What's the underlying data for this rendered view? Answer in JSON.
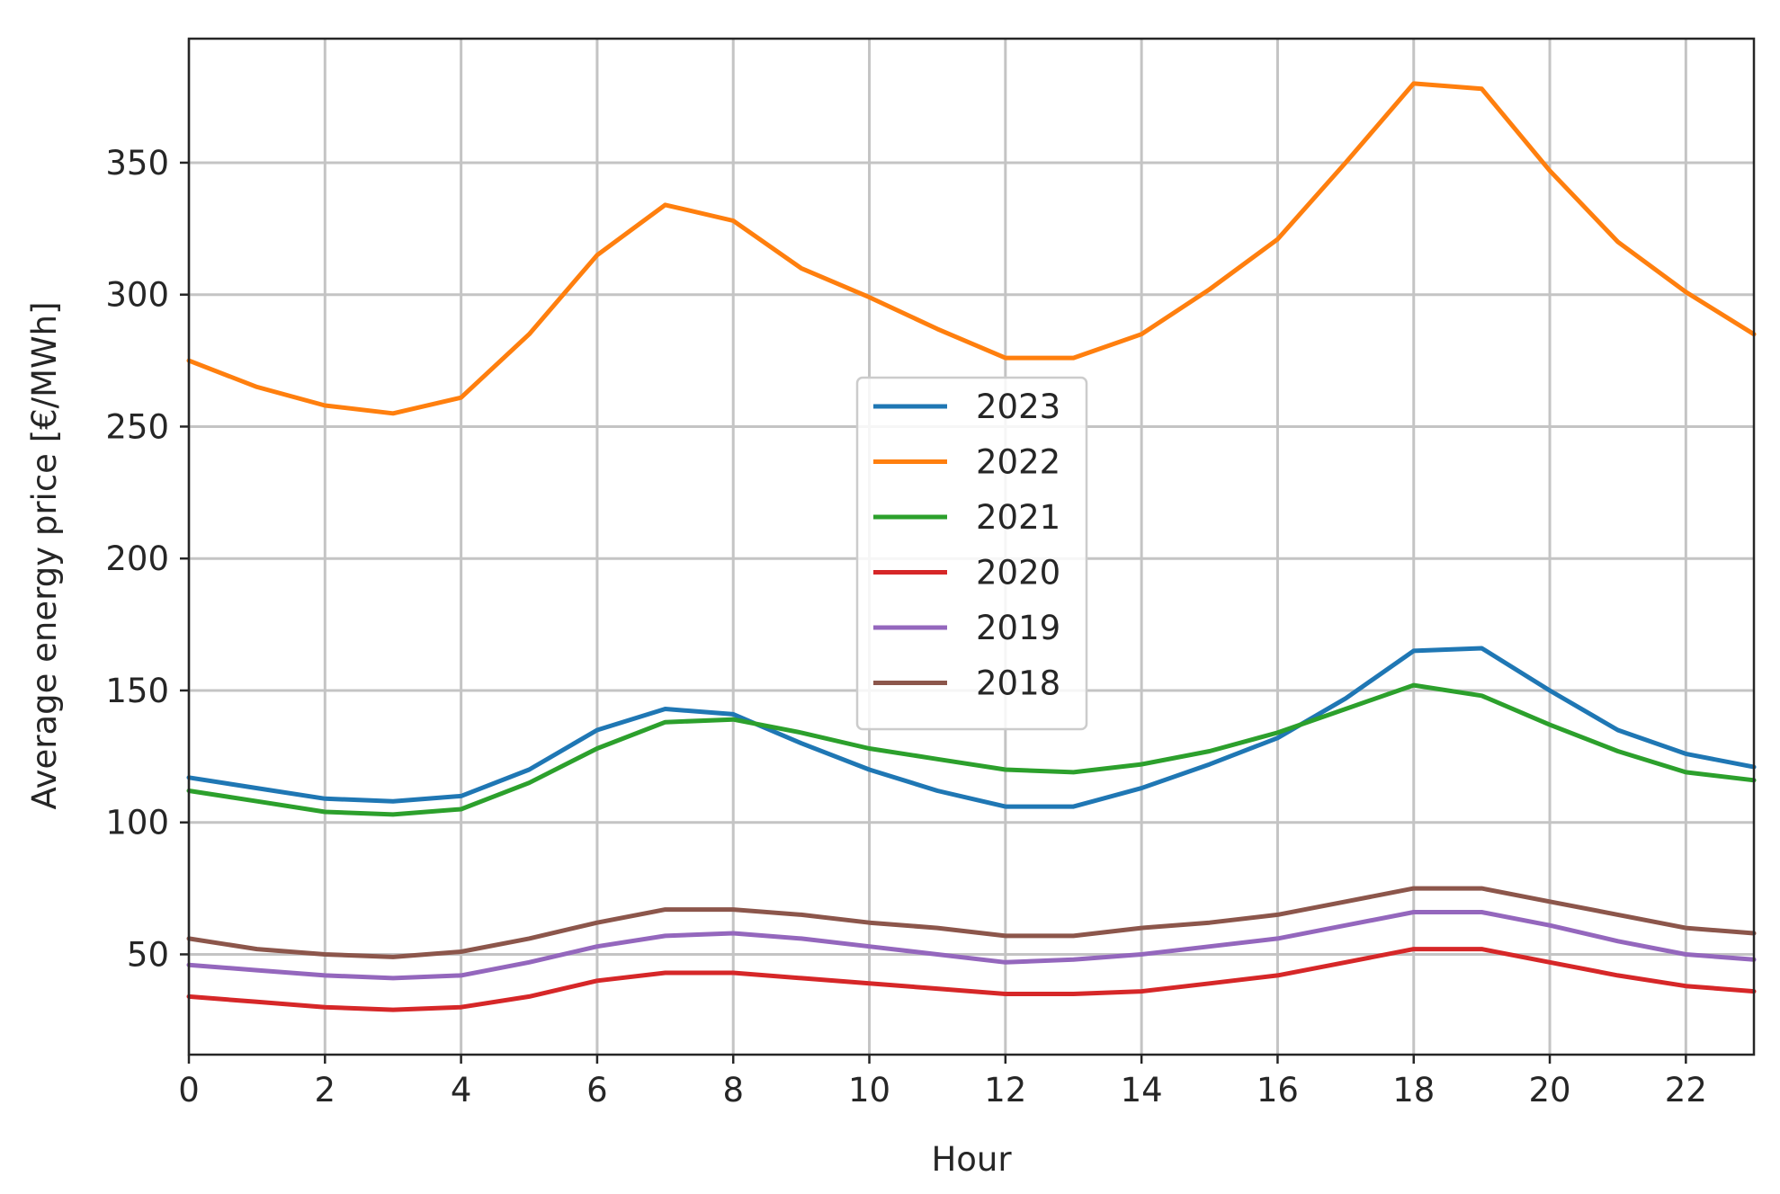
{
  "chart_data": {
    "type": "line",
    "title": "",
    "xlabel": "Hour",
    "ylabel": "Average energy price [€/MWh]",
    "xlim": [
      0,
      23
    ],
    "ylim": [
      12,
      397
    ],
    "xticks": [
      0,
      2,
      4,
      6,
      8,
      10,
      12,
      14,
      16,
      18,
      20,
      22
    ],
    "yticks": [
      50,
      100,
      150,
      200,
      250,
      300,
      350
    ],
    "grid": true,
    "legend_position": "center",
    "x": [
      0,
      1,
      2,
      3,
      4,
      5,
      6,
      7,
      8,
      9,
      10,
      11,
      12,
      13,
      14,
      15,
      16,
      17,
      18,
      19,
      20,
      21,
      22,
      23
    ],
    "series": [
      {
        "name": "2023",
        "color": "#1f77b4",
        "values": [
          117,
          113,
          109,
          108,
          110,
          120,
          135,
          143,
          141,
          130,
          120,
          112,
          106,
          106,
          113,
          122,
          132,
          147,
          165,
          166,
          150,
          135,
          126,
          121
        ]
      },
      {
        "name": "2022",
        "color": "#ff7f0e",
        "values": [
          275,
          265,
          258,
          255,
          261,
          285,
          315,
          334,
          328,
          310,
          299,
          287,
          276,
          276,
          285,
          302,
          321,
          350,
          380,
          378,
          347,
          320,
          301,
          285
        ]
      },
      {
        "name": "2021",
        "color": "#2ca02c",
        "values": [
          112,
          108,
          104,
          103,
          105,
          115,
          128,
          138,
          139,
          134,
          128,
          124,
          120,
          119,
          122,
          127,
          134,
          143,
          152,
          148,
          137,
          127,
          119,
          116
        ]
      },
      {
        "name": "2020",
        "color": "#d62728",
        "values": [
          34,
          32,
          30,
          29,
          30,
          34,
          40,
          43,
          43,
          41,
          39,
          37,
          35,
          35,
          36,
          39,
          42,
          47,
          52,
          52,
          47,
          42,
          38,
          36
        ]
      },
      {
        "name": "2019",
        "color": "#9467bd",
        "values": [
          46,
          44,
          42,
          41,
          42,
          47,
          53,
          57,
          58,
          56,
          53,
          50,
          47,
          48,
          50,
          53,
          56,
          61,
          66,
          66,
          61,
          55,
          50,
          48
        ]
      },
      {
        "name": "2018",
        "color": "#8c564b",
        "values": [
          56,
          52,
          50,
          49,
          51,
          56,
          62,
          67,
          67,
          65,
          62,
          60,
          57,
          57,
          60,
          62,
          65,
          70,
          75,
          75,
          70,
          65,
          60,
          58
        ]
      }
    ]
  }
}
